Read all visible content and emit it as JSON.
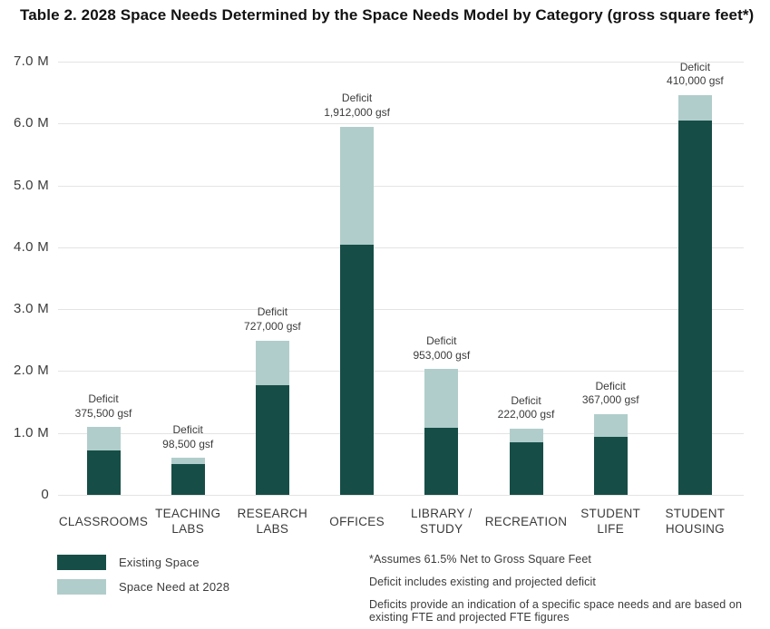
{
  "title": "Table 2. 2028 Space Needs Determined by the Space Needs Model by Category (gross square feet*)",
  "chart_data": {
    "type": "bar",
    "stacked": true,
    "title": "Table 2. 2028 Space Needs Determined by the Space Needs Model by Category (gross square feet*)",
    "categories": [
      "CLASSROOMS",
      "TEACHING\nLABS",
      "RESEARCH\nLABS",
      "OFFICES",
      "LIBRARY /\nSTUDY",
      "RECREATION",
      "STUDENT\nLIFE",
      "STUDENT\nHOUSING"
    ],
    "series": [
      {
        "name": "Existing Space",
        "unit": "million gsf",
        "color": "#164E47",
        "values": [
          0.72,
          0.5,
          1.77,
          4.04,
          1.08,
          0.85,
          0.94,
          6.05
        ]
      },
      {
        "name": "Space Need at 2028",
        "unit": "million gsf",
        "color": "#B0CDCB",
        "values": [
          0.3755,
          0.0985,
          0.727,
          1.912,
          0.953,
          0.222,
          0.367,
          0.41
        ]
      }
    ],
    "totals_msf": [
      1.1,
      0.6,
      2.5,
      5.95,
      2.03,
      1.07,
      1.31,
      6.46
    ],
    "annotations": [
      {
        "label": "Deficit",
        "value": "375,500 gsf"
      },
      {
        "label": "Deficit",
        "value": "98,500 gsf"
      },
      {
        "label": "Deficit",
        "value": "727,000 gsf"
      },
      {
        "label": "Deficit",
        "value": "1,912,000 gsf"
      },
      {
        "label": "Deficit",
        "value": "953,000 gsf"
      },
      {
        "label": "Deficit",
        "value": "222,000 gsf"
      },
      {
        "label": "Deficit",
        "value": "367,000 gsf"
      },
      {
        "label": "Deficit",
        "value": "410,000 gsf"
      }
    ],
    "ylabel": "",
    "xlabel": "",
    "ylim": [
      0,
      7
    ],
    "ytick_labels": [
      "7.0 M",
      "6.0 M",
      "5.0 M",
      "4.0 M",
      "3.0 M",
      "2.0 M",
      "1.0 M",
      "0"
    ],
    "grid": "horizontal",
    "legend_position": "bottom-left",
    "colors": {
      "existing": "#164E47",
      "deficit": "#B0CDCB",
      "gridline": "#e4e4e4",
      "text": "#3b3b3b"
    }
  },
  "legend": [
    {
      "label": "Existing Space",
      "color": "#164E47"
    },
    {
      "label": "Space Need at 2028",
      "color": "#B0CDCB"
    }
  ],
  "footnotes": [
    "*Assumes 61.5% Net to Gross Square Feet",
    "Deficit includes existing and projected deficit",
    "Deficits provide an indication of a specific space needs and are based on existing FTE and projected FTE figures"
  ]
}
